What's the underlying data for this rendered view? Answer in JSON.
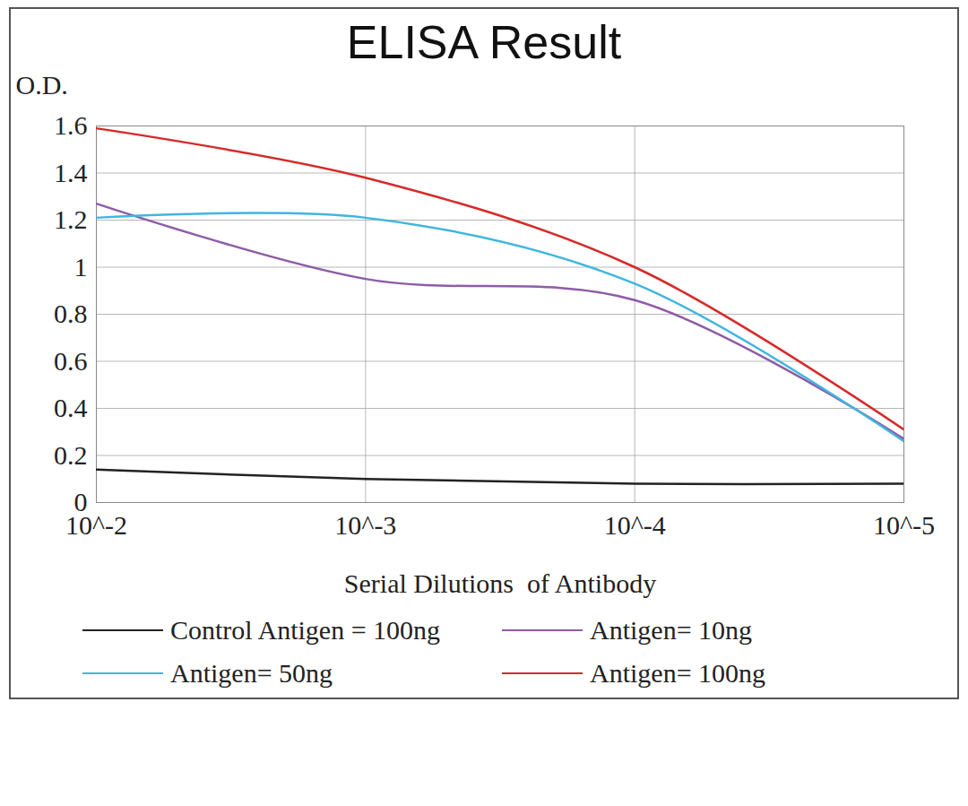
{
  "chart_data": {
    "type": "line",
    "title": "ELISA Result",
    "y_label": "O.D.",
    "x_label": "Serial Dilutions  of Antibody",
    "log": "x",
    "grid": true,
    "legend": "bottom",
    "marker": "none",
    "x": [
      0.01,
      0.001,
      0.0001,
      1e-05
    ],
    "xlim": [
      0.01,
      1e-05
    ],
    "xticks": [
      {
        "value": 0.01,
        "label": "10^-2"
      },
      {
        "value": 0.001,
        "label": "10^-3"
      },
      {
        "value": 0.0001,
        "label": "10^-4"
      },
      {
        "value": 1e-05,
        "label": "10^-5"
      }
    ],
    "ylim": [
      0,
      1.6
    ],
    "yticks": [
      0,
      0.2,
      0.4,
      0.6,
      0.8,
      1,
      1.2,
      1.4,
      1.6
    ],
    "series": [
      {
        "name": "Control Antigen = 100ng",
        "color": "#222222",
        "values": [
          0.14,
          0.1,
          0.08,
          0.08
        ]
      },
      {
        "name": "Antigen= 10ng",
        "color": "#8e5ca8",
        "values": [
          1.27,
          0.95,
          0.86,
          0.27
        ]
      },
      {
        "name": "Antigen= 50ng",
        "color": "#3fb6e0",
        "values": [
          1.21,
          1.21,
          0.93,
          0.26
        ]
      },
      {
        "name": "Antigen= 100ng",
        "color": "#d62a2a",
        "values": [
          1.59,
          1.38,
          1.0,
          0.31
        ]
      }
    ]
  }
}
